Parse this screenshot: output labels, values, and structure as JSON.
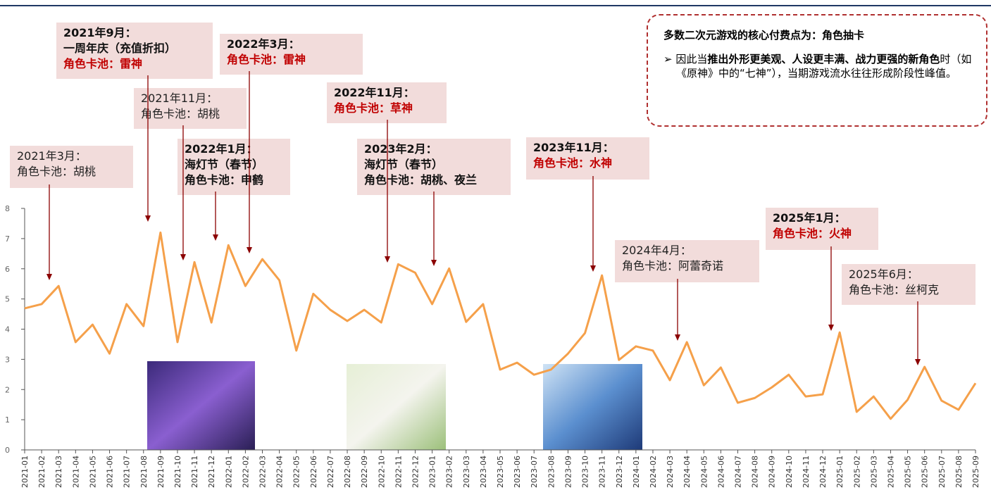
{
  "chart_data": {
    "type": "line",
    "categories": [
      "2021-01",
      "2021-02",
      "2021-03",
      "2021-04",
      "2021-05",
      "2021-06",
      "2021-07",
      "2021-08",
      "2021-09",
      "2021-10",
      "2021-11",
      "2021-12",
      "2022-01",
      "2022-02",
      "2022-03",
      "2022-04",
      "2022-05",
      "2022-06",
      "2022-07",
      "2022-08",
      "2022-09",
      "2022-10",
      "2022-11",
      "2022-12",
      "2023-01",
      "2023-02",
      "2023-03",
      "2023-04",
      "2023-05",
      "2023-06",
      "2023-07",
      "2023-08",
      "2023-09",
      "2023-10",
      "2023-11",
      "2023-12",
      "2024-01",
      "2024-02",
      "2024-03",
      "2024-04",
      "2024-05",
      "2024-06",
      "2024-07",
      "2024-08",
      "2024-09",
      "2024-10",
      "2024-11",
      "2024-12",
      "2025-01",
      "2025-02",
      "2025-03",
      "2025-04",
      "2025-05",
      "2025-06",
      "2025-07",
      "2025-08",
      "2025-09"
    ],
    "values": [
      4.69,
      4.83,
      5.43,
      3.57,
      4.15,
      3.19,
      4.83,
      4.1,
      7.2,
      3.57,
      6.22,
      4.22,
      6.78,
      5.43,
      6.32,
      5.62,
      3.29,
      5.17,
      4.64,
      4.27,
      4.64,
      4.22,
      6.15,
      5.87,
      4.83,
      6.01,
      4.24,
      4.83,
      2.66,
      2.89,
      2.49,
      2.66,
      3.19,
      3.87,
      5.78,
      2.98,
      3.43,
      3.29,
      2.31,
      3.57,
      2.14,
      2.73,
      1.56,
      1.72,
      2.07,
      2.49,
      1.77,
      1.84,
      3.89,
      1.26,
      1.77,
      1.03,
      1.66,
      2.75,
      1.63,
      1.33,
      2.21
    ],
    "color": "#f5a04a",
    "ylim": [
      0,
      8
    ],
    "yticks": [
      0,
      1,
      2,
      3,
      4,
      5,
      6,
      7,
      8
    ],
    "annotations": [
      {
        "bold": false,
        "lines": [
          {
            "text": "2021年3月：",
            "color": "#222222"
          },
          {
            "text": "角色卡池：胡桃",
            "color": "#222222"
          }
        ]
      },
      {
        "bold": true,
        "lines": [
          {
            "text": "2021年9月：",
            "color": "#111111"
          },
          {
            "text": "一周年庆（充值折扣）",
            "color": "#111111"
          },
          {
            "text": "角色卡池：雷神",
            "color": "#c00000"
          }
        ]
      },
      {
        "bold": false,
        "lines": [
          {
            "text": "2021年11月：",
            "color": "#222222"
          },
          {
            "text": "角色卡池：胡桃",
            "color": "#222222"
          }
        ]
      },
      {
        "bold": true,
        "lines": [
          {
            "text": "2022年1月：",
            "color": "#111111"
          },
          {
            "text": "海灯节（春节）",
            "color": "#111111"
          },
          {
            "text": "角色卡池：申鹤",
            "color": "#111111"
          }
        ]
      },
      {
        "bold": true,
        "lines": [
          {
            "text": "2022年3月：",
            "color": "#111111"
          },
          {
            "text": "角色卡池：雷神",
            "color": "#c00000"
          }
        ]
      },
      {
        "bold": true,
        "lines": [
          {
            "text": "2022年11月：",
            "color": "#111111"
          },
          {
            "text": "角色卡池：草神",
            "color": "#c00000"
          }
        ]
      },
      {
        "bold": true,
        "lines": [
          {
            "text": "2023年2月：",
            "color": "#111111"
          },
          {
            "text": "海灯节（春节）",
            "color": "#111111"
          },
          {
            "text": "角色卡池：胡桃、夜兰",
            "color": "#111111"
          }
        ]
      },
      {
        "bold": true,
        "lines": [
          {
            "text": "2023年11月：",
            "color": "#111111"
          },
          {
            "text": "角色卡池：水神",
            "color": "#c00000"
          }
        ]
      },
      {
        "bold": false,
        "lines": [
          {
            "text": "2024年4月：",
            "color": "#222222"
          },
          {
            "text": "角色卡池：阿蕾奇诺",
            "color": "#222222"
          }
        ]
      },
      {
        "bold": true,
        "lines": [
          {
            "text": "2025年1月：",
            "color": "#111111"
          },
          {
            "text": "角色卡池：火神",
            "color": "#c00000"
          }
        ]
      },
      {
        "bold": false,
        "lines": [
          {
            "text": "2025年6月：",
            "color": "#222222"
          },
          {
            "text": "角色卡池：丝柯克",
            "color": "#222222"
          }
        ]
      }
    ],
    "callout": {
      "title": "多数二次元游戏的核心付费点为：角色抽卡",
      "bullet": [
        {
          "text": "因此当",
          "bold": false
        },
        {
          "text": "推出外形更美观、人设更丰满、战力更强的新角色",
          "bold": true
        },
        {
          "text": "时（如《原神》中的“七神”），当期游戏流水往往形成阶段性峰值。",
          "bold": false
        }
      ]
    }
  }
}
